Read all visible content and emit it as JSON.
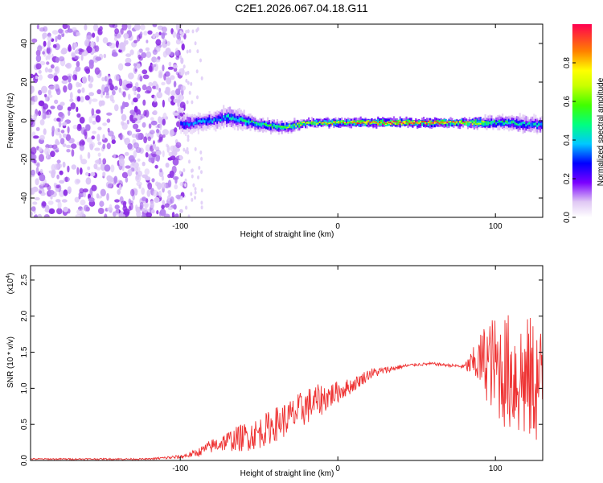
{
  "title": "C2E1.2026.067.04.18.G11",
  "chart_data": [
    {
      "type": "heatmap",
      "xlabel": "Height of straight line (km)",
      "ylabel": "Frequency (Hz)",
      "xlim": [
        -195,
        130
      ],
      "ylim": [
        -50,
        50
      ],
      "xticks": [
        -100,
        0,
        100
      ],
      "xtick_labels": [
        "-100",
        "0",
        "100"
      ],
      "yticks": [
        -40,
        -20,
        0,
        20,
        40
      ],
      "ytick_labels": [
        "-40",
        "-20",
        "0",
        "20",
        "40"
      ],
      "noise_region_x": [
        -195,
        -100
      ],
      "ridge": {
        "x": [
          -100,
          -80,
          -70,
          -60,
          -50,
          -40,
          -30,
          -20,
          -10,
          0,
          20,
          40,
          60,
          80,
          90,
          100,
          110,
          120,
          130
        ],
        "center_hz": [
          -2,
          0,
          2,
          0,
          -2,
          -3,
          -3,
          -1,
          -1,
          -1,
          -1,
          -1,
          -1,
          -1,
          -1,
          -1,
          -1,
          -2,
          -2
        ],
        "halfwidth_hz": [
          5,
          4,
          5,
          4,
          3,
          3,
          3,
          2,
          2,
          2,
          2,
          2,
          2,
          2,
          3,
          3,
          4,
          4,
          4
        ],
        "peak_amplitude": [
          0.3,
          0.35,
          0.4,
          0.45,
          0.5,
          0.55,
          0.6,
          0.7,
          0.75,
          0.8,
          0.9,
          0.95,
          0.95,
          0.8,
          0.65,
          0.5,
          0.45,
          0.4,
          0.4
        ]
      },
      "colorbar": {
        "label": "Normalized spectral amplitude",
        "range": [
          0.0,
          1.0
        ],
        "ticks": [
          0.0,
          0.2,
          0.4,
          0.6,
          0.8
        ],
        "tick_labels": [
          "0.0",
          "0.2",
          "0.4",
          "0.6",
          "0.8"
        ]
      }
    },
    {
      "type": "line",
      "xlabel": "Height of straight line (km)",
      "ylabel": "SNR (10 * v/v)",
      "multiplier_label": "(x10",
      "multiplier_exp": "4",
      "xlim": [
        -195,
        130
      ],
      "ylim": [
        0,
        2.7
      ],
      "xticks": [
        -100,
        0,
        100
      ],
      "xtick_labels": [
        "-100",
        "0",
        "100"
      ],
      "yticks": [
        0.0,
        0.5,
        1.0,
        1.5,
        2.0,
        2.5
      ],
      "ytick_labels": [
        "0.0",
        "0.5",
        "1.0",
        "1.5",
        "2.0",
        "2.5"
      ],
      "color": "#ee3333",
      "series": [
        {
          "name": "SNR",
          "x": [
            -195,
            -160,
            -120,
            -100,
            -90,
            -80,
            -70,
            -60,
            -50,
            -40,
            -30,
            -20,
            -10,
            0,
            10,
            20,
            30,
            40,
            50,
            60,
            70,
            80,
            88,
            95,
            100,
            105,
            110,
            115,
            120,
            125,
            130
          ],
          "y": [
            0.02,
            0.02,
            0.02,
            0.05,
            0.1,
            0.2,
            0.27,
            0.32,
            0.38,
            0.5,
            0.6,
            0.75,
            0.85,
            0.95,
            1.05,
            1.2,
            1.25,
            1.3,
            1.33,
            1.34,
            1.32,
            1.3,
            1.35,
            1.4,
            1.3,
            1.25,
            1.2,
            1.15,
            1.1,
            1.1,
            1.05
          ],
          "noise_amplitude": [
            0.01,
            0.01,
            0.01,
            0.03,
            0.05,
            0.1,
            0.14,
            0.2,
            0.22,
            0.24,
            0.25,
            0.26,
            0.22,
            0.15,
            0.1,
            0.08,
            0.05,
            0.03,
            0.02,
            0.02,
            0.02,
            0.03,
            0.3,
            0.6,
            0.7,
            0.8,
            0.85,
            0.9,
            0.9,
            0.9,
            0.8
          ]
        }
      ]
    }
  ]
}
